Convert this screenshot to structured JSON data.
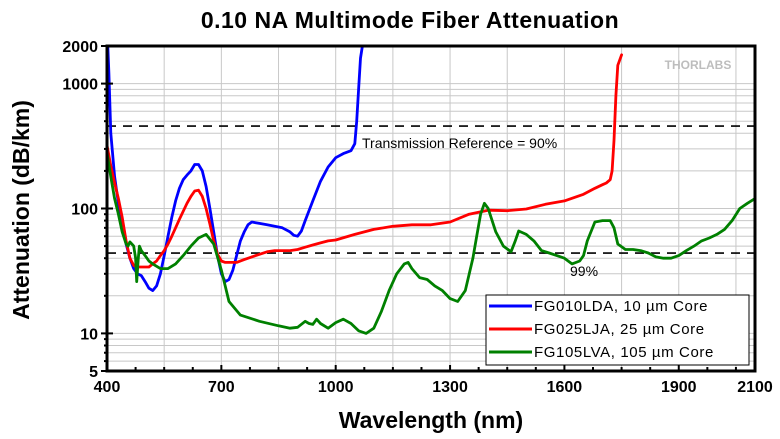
{
  "chart_data": {
    "type": "line",
    "title": "0.10 NA Multimode Fiber Attenuation",
    "xlabel": "Wavelength (nm)",
    "ylabel": "Attenuation (dB/km)",
    "xlim": [
      400,
      2100
    ],
    "ylim": [
      5,
      2000
    ],
    "yscale": "log",
    "grid": true,
    "xticks": [
      400,
      700,
      1000,
      1300,
      1600,
      1900,
      2100
    ],
    "xtick_labels": [
      "400",
      "700",
      "1000",
      "1300",
      "1600",
      "1900",
      "2100"
    ],
    "xgrid": [
      550,
      700,
      850,
      1000,
      1150,
      1300,
      1450,
      1600,
      1750,
      1900,
      2050
    ],
    "yticks": [
      5,
      10,
      100,
      1000,
      2000
    ],
    "ytick_labels": [
      "5",
      "10",
      "100",
      "1000",
      "2000"
    ],
    "reference_lines": [
      {
        "label": "Transmission Reference = 90%",
        "value": 457
      },
      {
        "label": "99%",
        "value": 44
      }
    ],
    "watermark": "THORLABS",
    "legend_position": "bottom-right",
    "series": [
      {
        "name": "FG010LDA, 10 µm Core",
        "color": "#0000ff",
        "x": [
          402,
          405,
          410,
          420,
          430,
          440,
          450,
          460,
          470,
          480,
          490,
          500,
          510,
          520,
          530,
          540,
          550,
          560,
          570,
          580,
          590,
          600,
          610,
          620,
          630,
          640,
          650,
          660,
          670,
          680,
          690,
          700,
          710,
          720,
          730,
          740,
          750,
          760,
          770,
          780,
          790,
          800,
          820,
          840,
          860,
          880,
          890,
          900,
          910,
          920,
          940,
          960,
          980,
          1000,
          1020,
          1040,
          1050,
          1055,
          1060,
          1065,
          1070
        ],
        "y": [
          2000,
          1200,
          400,
          180,
          110,
          75,
          52,
          40,
          33,
          30,
          29,
          26,
          23,
          22,
          24,
          30,
          42,
          60,
          85,
          115,
          145,
          170,
          185,
          200,
          225,
          225,
          200,
          150,
          100,
          65,
          42,
          30,
          26,
          27,
          32,
          42,
          55,
          65,
          74,
          78,
          77,
          76,
          74,
          72,
          70,
          65,
          61,
          60,
          66,
          80,
          115,
          165,
          215,
          255,
          275,
          290,
          330,
          500,
          900,
          1600,
          2000
        ]
      },
      {
        "name": "FG025LJA, 25 µm Core",
        "color": "#ff0000",
        "x": [
          400,
          410,
          420,
          430,
          440,
          450,
          460,
          470,
          480,
          490,
          500,
          510,
          520,
          530,
          540,
          550,
          560,
          570,
          580,
          590,
          600,
          610,
          620,
          630,
          640,
          650,
          660,
          670,
          680,
          690,
          700,
          710,
          720,
          740,
          760,
          780,
          800,
          820,
          840,
          860,
          880,
          900,
          920,
          940,
          960,
          980,
          1000,
          1050,
          1100,
          1150,
          1200,
          1250,
          1300,
          1350,
          1400,
          1450,
          1500,
          1550,
          1600,
          1650,
          1680,
          1700,
          1710,
          1720,
          1725,
          1730,
          1735,
          1740,
          1750
        ],
        "y": [
          320,
          220,
          160,
          120,
          85,
          55,
          40,
          35,
          34,
          34,
          34,
          34,
          36,
          38,
          42,
          46,
          52,
          60,
          70,
          82,
          95,
          110,
          125,
          138,
          140,
          125,
          100,
          75,
          55,
          43,
          38,
          37,
          37,
          37,
          39,
          41,
          43,
          45,
          46,
          46,
          46,
          47,
          49,
          51,
          53,
          55,
          56,
          62,
          68,
          72,
          74,
          74,
          78,
          90,
          97,
          96,
          99,
          108,
          115,
          130,
          145,
          155,
          160,
          170,
          200,
          350,
          800,
          1400,
          1700
        ]
      },
      {
        "name": "FG105LVA, 105 µm Core",
        "color": "#008000",
        "x": [
          400,
          410,
          420,
          430,
          440,
          450,
          455,
          460,
          465,
          470,
          475,
          478,
          482,
          485,
          490,
          500,
          510,
          520,
          540,
          560,
          580,
          600,
          620,
          640,
          660,
          680,
          700,
          720,
          750,
          800,
          850,
          880,
          900,
          920,
          930,
          940,
          950,
          960,
          980,
          1000,
          1020,
          1040,
          1060,
          1080,
          1100,
          1120,
          1140,
          1160,
          1180,
          1190,
          1200,
          1220,
          1240,
          1260,
          1280,
          1300,
          1320,
          1340,
          1360,
          1370,
          1380,
          1390,
          1400,
          1420,
          1440,
          1460,
          1470,
          1480,
          1500,
          1520,
          1540,
          1560,
          1580,
          1600,
          1620,
          1640,
          1650,
          1660,
          1680,
          1700,
          1720,
          1730,
          1740,
          1760,
          1780,
          1800,
          1820,
          1840,
          1860,
          1880,
          1900,
          1920,
          1940,
          1960,
          1980,
          2000,
          2020,
          2040,
          2060,
          2080,
          2100
        ],
        "y": [
          280,
          180,
          120,
          90,
          65,
          52,
          50,
          54,
          52,
          50,
          40,
          26,
          40,
          50,
          46,
          42,
          38,
          36,
          33,
          33,
          36,
          42,
          50,
          58,
          62,
          52,
          32,
          18,
          14,
          12.5,
          11.5,
          11,
          11.2,
          12.5,
          12,
          11.8,
          13,
          12,
          11,
          12.2,
          13,
          12,
          10.5,
          10,
          11,
          15,
          22,
          30,
          36,
          37,
          33,
          28,
          27,
          24,
          22,
          19,
          18,
          22,
          40,
          60,
          90,
          110,
          100,
          65,
          50,
          45,
          54,
          66,
          62,
          55,
          46,
          44,
          42,
          40,
          36,
          38,
          42,
          55,
          78,
          80,
          80,
          70,
          52,
          47,
          47,
          46,
          44,
          41,
          40,
          40,
          42,
          46,
          50,
          55,
          58,
          62,
          68,
          80,
          100,
          110,
          120
        ]
      }
    ]
  }
}
